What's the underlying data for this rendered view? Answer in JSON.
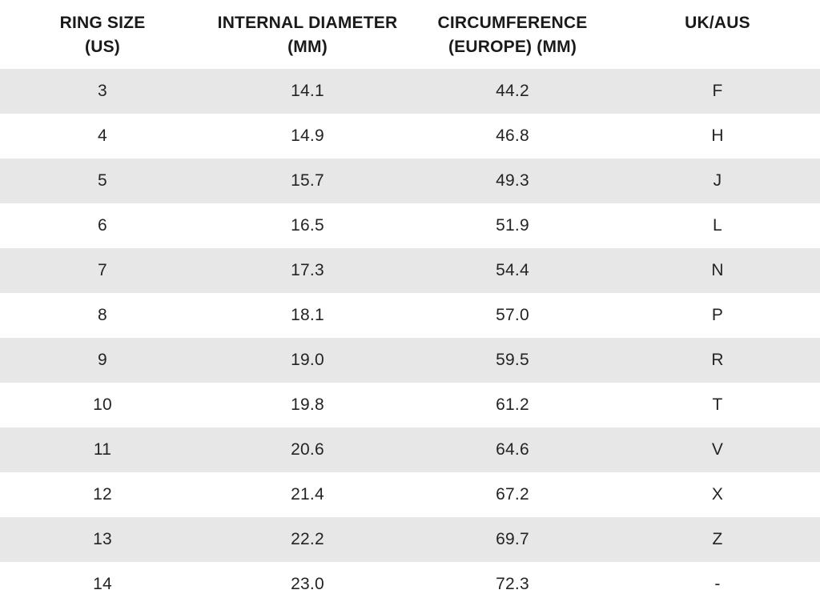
{
  "theme": {
    "stripe": "#e7e7e7",
    "header-text": "#1a1a1a",
    "body-text": "#242424",
    "page-bg": "#ffffff"
  },
  "headers_display": [
    "RING SIZE\n(US)",
    "INTERNAL DIAMETER\n(MM)",
    "CIRCUMFERENCE\n(EUROPE) (MM)",
    "UK/AUS"
  ],
  "chart_data": {
    "type": "table",
    "columns": [
      "RING SIZE (US)",
      "INTERNAL DIAMETER (MM)",
      "CIRCUMFERENCE (EUROPE) (MM)",
      "UK/AUS"
    ],
    "rows": [
      [
        "3",
        "14.1",
        "44.2",
        "F"
      ],
      [
        "4",
        "14.9",
        "46.8",
        "H"
      ],
      [
        "5",
        "15.7",
        "49.3",
        "J"
      ],
      [
        "6",
        "16.5",
        "51.9",
        "L"
      ],
      [
        "7",
        "17.3",
        "54.4",
        "N"
      ],
      [
        "8",
        "18.1",
        "57.0",
        "P"
      ],
      [
        "9",
        "19.0",
        "59.5",
        "R"
      ],
      [
        "10",
        "19.8",
        "61.2",
        "T"
      ],
      [
        "11",
        "20.6",
        "64.6",
        "V"
      ],
      [
        "12",
        "21.4",
        "67.2",
        "X"
      ],
      [
        "13",
        "22.2",
        "69.7",
        "Z"
      ],
      [
        "14",
        "23.0",
        "72.3",
        "-"
      ]
    ],
    "layout": {
      "striped_rows": "odd rows (1st, 3rd, ...) shaded",
      "stripe_color": "#e7e7e7",
      "alignment": "center",
      "grid": false,
      "borders": false
    }
  }
}
